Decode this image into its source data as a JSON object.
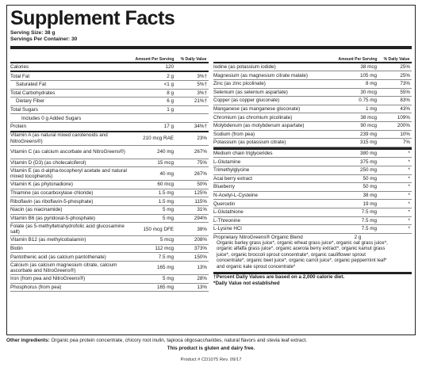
{
  "title": "Supplement Facts",
  "serving_size": "Serving Size: 38 g",
  "servings_per_container": "Servings Per Container: 30",
  "header": {
    "amount": "Amount Per Serving",
    "dv": "% Daily Value"
  },
  "left_rows": [
    {
      "name": "Calories",
      "amount": "120",
      "dv": ""
    },
    {
      "name": "Total Fat",
      "amount": "2 g",
      "dv": "3%†"
    },
    {
      "name": "Saturated Fat",
      "amount": "<1 g",
      "dv": "5%†"
    },
    {
      "name": "Total Carbohydrates",
      "amount": "8 g",
      "dv": "3%†"
    },
    {
      "name": "Dietary Fiber",
      "amount": "6 g",
      "dv": "21%†"
    },
    {
      "name": "Total Sugars",
      "amount": "1 g",
      "dv": ""
    },
    {
      "name": "Includes 0 g Added Sugars",
      "amount": "",
      "dv": ""
    },
    {
      "name": "Protein",
      "amount": "17 g",
      "dv": "34%†"
    },
    {
      "name": "Vitamin A (as natural mixed carotenoids and NitroGreens®)",
      "amount": "210 mcg RAE",
      "dv": "23%"
    },
    {
      "name": "Vitamin C (as calcium ascorbate and NitroGreens®)",
      "amount": "240 mg",
      "dv": "267%"
    },
    {
      "name": "Vitamin D (D3) (as cholecalciferol)",
      "amount": "15 mcg",
      "dv": "75%"
    },
    {
      "name": "Vitamin E (as d-alpha-tocopheryl acetate and natural mixed tocopherols)",
      "amount": "40 mg",
      "dv": "267%"
    },
    {
      "name": "Vitamin K (as phytonadione)",
      "amount": "60 mcg",
      "dv": "50%"
    },
    {
      "name": "Thiamine (as cocarboxylase chloride)",
      "amount": "1.5 mg",
      "dv": "125%"
    },
    {
      "name": "Riboflavin (as riboflavin-5-phosphate)",
      "amount": "1.5 mg",
      "dv": "115%"
    },
    {
      "name": "Niacin (as niacinamide)",
      "amount": "5 mg",
      "dv": "31%"
    },
    {
      "name": "Vitamin B6 (as pyridoxal-5-phosphate)",
      "amount": "5 mg",
      "dv": "294%"
    },
    {
      "name": "Folate (as 5-methyltetrahydrofolic acid glucosamine salt)",
      "amount": "150 mcg DFE",
      "dv": "38%"
    },
    {
      "name": "Vitamin B12 (as methylcobalamin)",
      "amount": "5 mcg",
      "dv": "208%"
    },
    {
      "name": "Biotin",
      "amount": "112 mcg",
      "dv": "373%"
    },
    {
      "name": "Pantothenic acid (as calcium pantothenate)",
      "amount": "7.5 mg",
      "dv": "150%"
    },
    {
      "name": "Calcium (as calcium magnesium citrate, calcium ascorbate and NitroGreens®)",
      "amount": "165 mg",
      "dv": "13%"
    },
    {
      "name": "Iron (from pea and NitroGreens®)",
      "amount": "5 mg",
      "dv": "28%"
    },
    {
      "name": "Phosphorus (from pea)",
      "amount": "165 mg",
      "dv": "13%"
    }
  ],
  "right_rows": [
    {
      "name": "Iodine (as potassium iodide)",
      "amount": "38 mcg",
      "dv": "25%"
    },
    {
      "name": "Magnesium (as magnesium citrate malate)",
      "amount": "105 mg",
      "dv": "25%"
    },
    {
      "name": "Zinc (as zinc picolinate)",
      "amount": "8 mg",
      "dv": "73%"
    },
    {
      "name": "Selenium (as selenium aspartate)",
      "amount": "30 mcg",
      "dv": "55%"
    },
    {
      "name": "Copper (as copper gluconate)",
      "amount": "0.75 mg",
      "dv": "83%"
    },
    {
      "name": "Manganese (as manganese gluconate)",
      "amount": "1 mg",
      "dv": "43%"
    },
    {
      "name": "Chromium (as chromium picolinate)",
      "amount": "38 mcg",
      "dv": "109%"
    },
    {
      "name": "Molybdenum (as molybdenum aspartate)",
      "amount": "90 mcg",
      "dv": "200%"
    },
    {
      "name": "Sodium (from pea)",
      "amount": "239 mg",
      "dv": "10%"
    },
    {
      "name": "Potassium (as potassium citrate)",
      "amount": "315 mg",
      "dv": "7%"
    }
  ],
  "right_rows_2": [
    {
      "name": "Medium chain triglycerides",
      "amount": "380 mg",
      "dv": "*"
    },
    {
      "name": "L-Glutamine",
      "amount": "375 mg",
      "dv": "*"
    },
    {
      "name": "Trimethylglycine",
      "amount": "250 mg",
      "dv": "*"
    },
    {
      "name": "Acai berry extract",
      "amount": "50 mg",
      "dv": "*"
    },
    {
      "name": "Blueberry",
      "amount": "50 mg",
      "dv": "*"
    },
    {
      "name": "N-Acetyl-L-Cysteine",
      "amount": "38 mg",
      "dv": "*"
    },
    {
      "name": "Quercetin",
      "amount": "19 mg",
      "dv": "*"
    },
    {
      "name": "L-Glutathione",
      "amount": "7.5 mg",
      "dv": "*"
    },
    {
      "name": "L-Threonine",
      "amount": "7.5 mg",
      "dv": "*"
    },
    {
      "name": "L-Lysine HCl",
      "amount": "7.5 mg",
      "dv": "*"
    }
  ],
  "blend": {
    "name": "Proprietary NitroGreens® Organic Blend",
    "amount": "2 g",
    "text": "Organic barley grass juice*, organic wheat grass juice*, organic oat grass juice*, organic alfalfa grass juice*, organic acerola berry extract*, organic kamut grass juice*, organic broccoli sprout concentrate*, organic cauliflower sprout concentrate*, organic beet juice*, organic carrot juice*, organic peppermint leaf* and organic kale sprout concentrate*"
  },
  "footnotes": {
    "percent_dv": "†Percent Daily Values are based on a 2,000 calorie diet.",
    "not_established": "*Daily Value not established"
  },
  "other_ingredients_label": "Other ingredients:",
  "other_ingredients": "Organic pea protein concentrate, chicory root inulin, tapioca oligosaccharides, natural flavors and stevia leaf extract.",
  "gluten_free": "This product is gluten and dairy free.",
  "product_code": "Product # CD1075  Rev. 09/17"
}
